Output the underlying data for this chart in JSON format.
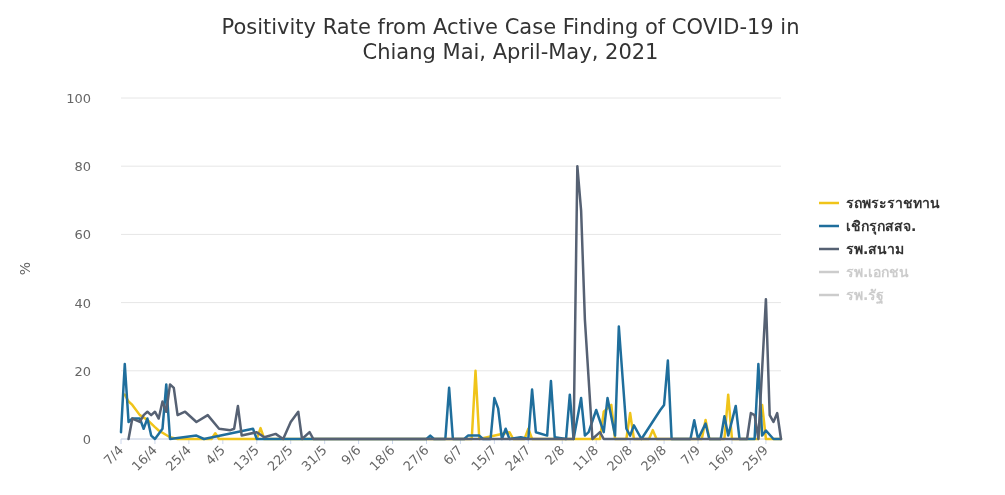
{
  "chart_data": {
    "type": "line",
    "title": "Positivity Rate from Active Case Finding of COVID-19 in Chiang Mai, April-May, 2021",
    "ylabel": "%",
    "ylim": [
      0,
      100
    ],
    "yticks": [
      0,
      20,
      40,
      60,
      80,
      100
    ],
    "xlim": [
      "2021-04-07",
      "2021-09-29"
    ],
    "xticks": [
      {
        "value": "2021-04-07",
        "label": "7/4"
      },
      {
        "value": "2021-04-16",
        "label": "16/4"
      },
      {
        "value": "2021-04-25",
        "label": "25/4"
      },
      {
        "value": "2021-05-04",
        "label": "4/5"
      },
      {
        "value": "2021-05-13",
        "label": "13/5"
      },
      {
        "value": "2021-05-22",
        "label": "22/5"
      },
      {
        "value": "2021-05-31",
        "label": "31/5"
      },
      {
        "value": "2021-06-09",
        "label": "9/6"
      },
      {
        "value": "2021-06-18",
        "label": "18/6"
      },
      {
        "value": "2021-06-27",
        "label": "27/6"
      },
      {
        "value": "2021-07-06",
        "label": "6/7"
      },
      {
        "value": "2021-07-15",
        "label": "15/7"
      },
      {
        "value": "2021-07-24",
        "label": "24/7"
      },
      {
        "value": "2021-08-02",
        "label": "2/8"
      },
      {
        "value": "2021-08-11",
        "label": "11/8"
      },
      {
        "value": "2021-08-20",
        "label": "20/8"
      },
      {
        "value": "2021-08-29",
        "label": "29/8"
      },
      {
        "value": "2021-09-07",
        "label": "7/9"
      },
      {
        "value": "2021-09-16",
        "label": "16/9"
      },
      {
        "value": "2021-09-25",
        "label": "25/9"
      }
    ],
    "grid": "y",
    "legend": "right",
    "series": [
      {
        "name": "รถพระราชทาน",
        "color": "#f0c419",
        "x": [
          "2021-04-08",
          "2021-04-09",
          "2021-04-10",
          "2021-04-12",
          "2021-04-14",
          "2021-04-16",
          "2021-04-17",
          "2021-04-20",
          "2021-04-22",
          "2021-05-01",
          "2021-05-02",
          "2021-05-03",
          "2021-05-13",
          "2021-05-14",
          "2021-05-15",
          "2021-07-09",
          "2021-07-10",
          "2021-07-11",
          "2021-07-19",
          "2021-07-20",
          "2021-07-23",
          "2021-07-24",
          "2021-07-25",
          "2021-08-12",
          "2021-08-13",
          "2021-08-15",
          "2021-08-16",
          "2021-08-19",
          "2021-08-20",
          "2021-08-21",
          "2021-08-25",
          "2021-08-26",
          "2021-08-27",
          "2021-09-08",
          "2021-09-09",
          "2021-09-10",
          "2021-09-14",
          "2021-09-15",
          "2021-09-16",
          "2021-09-23",
          "2021-09-24",
          "2021-09-25",
          "2021-09-29"
        ],
        "values": [
          13,
          11,
          10,
          7,
          5.6,
          3.5,
          2.5,
          0.5,
          0,
          0,
          1.7,
          0,
          0,
          3.2,
          0,
          0,
          20,
          0,
          2,
          0,
          0,
          3,
          0,
          0,
          8,
          10,
          0,
          0,
          7.6,
          0,
          0,
          2.6,
          0,
          0,
          5.6,
          0,
          0,
          13,
          0,
          0,
          10,
          0,
          0
        ]
      },
      {
        "name": "เชิกรุกสสจ.",
        "color": "#1f6e9c",
        "x": [
          "2021-04-07",
          "2021-04-08",
          "2021-04-09",
          "2021-04-10",
          "2021-04-12",
          "2021-04-13",
          "2021-04-14",
          "2021-04-15",
          "2021-04-16",
          "2021-04-18",
          "2021-04-19",
          "2021-04-20",
          "2021-04-27",
          "2021-04-29",
          "2021-05-12",
          "2021-05-13",
          "2021-06-27",
          "2021-06-28",
          "2021-06-29",
          "2021-07-02",
          "2021-07-03",
          "2021-07-04",
          "2021-07-07",
          "2021-07-08",
          "2021-07-11",
          "2021-07-12",
          "2021-07-14",
          "2021-07-15",
          "2021-07-16",
          "2021-07-17",
          "2021-07-18",
          "2021-07-19",
          "2021-07-22",
          "2021-07-24",
          "2021-07-25",
          "2021-07-26",
          "2021-07-29",
          "2021-07-30",
          "2021-07-31",
          "2021-08-03",
          "2021-08-04",
          "2021-08-05",
          "2021-08-07",
          "2021-08-08",
          "2021-08-09",
          "2021-08-11",
          "2021-08-13",
          "2021-08-14",
          "2021-08-16",
          "2021-08-17",
          "2021-08-19",
          "2021-08-20",
          "2021-08-21",
          "2021-08-23",
          "2021-08-28",
          "2021-08-29",
          "2021-08-30",
          "2021-08-31",
          "2021-09-05",
          "2021-09-06",
          "2021-09-07",
          "2021-09-09",
          "2021-09-10",
          "2021-09-13",
          "2021-09-14",
          "2021-09-15",
          "2021-09-17",
          "2021-09-18",
          "2021-09-22",
          "2021-09-23",
          "2021-09-24",
          "2021-09-25",
          "2021-09-27",
          "2021-09-29"
        ],
        "values": [
          2,
          22,
          5,
          6,
          6,
          3,
          6,
          1,
          0,
          3,
          16,
          0,
          1,
          0,
          3,
          0,
          0,
          1,
          0,
          0,
          15,
          0,
          0,
          1,
          1,
          0,
          0,
          12,
          9,
          0,
          3,
          0,
          0.5,
          0,
          14.5,
          2,
          1,
          17,
          0.5,
          0,
          13,
          0,
          12,
          1,
          2,
          8.5,
          2,
          12,
          1,
          33,
          3,
          1,
          4,
          0,
          8.5,
          10,
          23,
          0,
          0,
          5.5,
          0,
          4.5,
          0,
          0,
          6.7,
          1,
          9.7,
          0,
          0,
          22,
          1,
          2.5,
          0,
          0
        ]
      },
      {
        "name": "รพ.สนาม",
        "color": "#566173",
        "x": [
          "2021-04-09",
          "2021-04-10",
          "2021-04-12",
          "2021-04-13",
          "2021-04-14",
          "2021-04-15",
          "2021-04-16",
          "2021-04-17",
          "2021-04-18",
          "2021-04-19",
          "2021-04-20",
          "2021-04-21",
          "2021-04-22",
          "2021-04-24",
          "2021-04-27",
          "2021-04-30",
          "2021-05-03",
          "2021-05-06",
          "2021-05-07",
          "2021-05-08",
          "2021-05-09",
          "2021-05-13",
          "2021-05-15",
          "2021-05-18",
          "2021-05-20",
          "2021-05-22",
          "2021-05-24",
          "2021-05-25",
          "2021-05-27",
          "2021-05-28",
          "2021-08-05",
          "2021-08-06",
          "2021-08-07",
          "2021-08-08",
          "2021-08-10",
          "2021-08-12",
          "2021-08-13",
          "2021-09-20",
          "2021-09-21",
          "2021-09-22",
          "2021-09-23",
          "2021-09-25",
          "2021-09-26",
          "2021-09-27",
          "2021-09-28",
          "2021-09-29"
        ],
        "values": [
          0,
          6,
          5,
          7,
          8,
          7,
          8,
          6,
          11,
          8,
          16,
          15,
          7,
          8,
          5,
          7,
          3,
          2.6,
          3,
          9.7,
          1,
          2,
          0.5,
          1.5,
          0,
          5,
          8,
          0,
          2,
          0,
          0,
          80,
          67,
          35,
          0,
          2,
          0,
          0,
          7.6,
          7,
          0,
          41,
          7,
          5,
          7.6,
          0
        ]
      },
      {
        "name": "รพ.เอกชน",
        "color": "#cccccc"
      },
      {
        "name": "รพ.รัฐ",
        "color": "#cccccc"
      }
    ]
  }
}
